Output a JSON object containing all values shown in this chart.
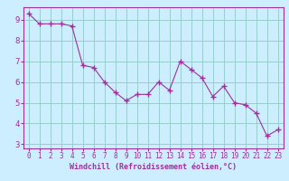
{
  "x": [
    0,
    1,
    2,
    3,
    4,
    5,
    6,
    7,
    8,
    9,
    10,
    11,
    12,
    13,
    14,
    15,
    16,
    17,
    18,
    19,
    20,
    21,
    22,
    23
  ],
  "y": [
    9.3,
    8.8,
    8.8,
    8.8,
    8.7,
    6.8,
    6.7,
    6.0,
    5.5,
    5.1,
    5.4,
    5.4,
    6.0,
    5.6,
    7.0,
    6.6,
    6.2,
    5.3,
    5.8,
    5.0,
    4.9,
    4.5,
    3.4,
    3.7
  ],
  "line_color": "#993399",
  "marker": "+",
  "marker_size": 4,
  "marker_lw": 1.0,
  "bg_color": "#cceeff",
  "grid_color": "#99cccc",
  "xlabel": "Windchill (Refroidissement éolien,°C)",
  "xlim": [
    -0.5,
    23.5
  ],
  "ylim": [
    2.8,
    9.6
  ],
  "yticks": [
    3,
    4,
    5,
    6,
    7,
    8,
    9
  ],
  "xticks": [
    0,
    1,
    2,
    3,
    4,
    5,
    6,
    7,
    8,
    9,
    10,
    11,
    12,
    13,
    14,
    15,
    16,
    17,
    18,
    19,
    20,
    21,
    22,
    23
  ],
  "tick_color": "#993399",
  "label_color": "#993399",
  "spine_color": "#993399",
  "tick_fontsize": 5.5,
  "ytick_fontsize": 6.5,
  "xlabel_fontsize": 6.0
}
